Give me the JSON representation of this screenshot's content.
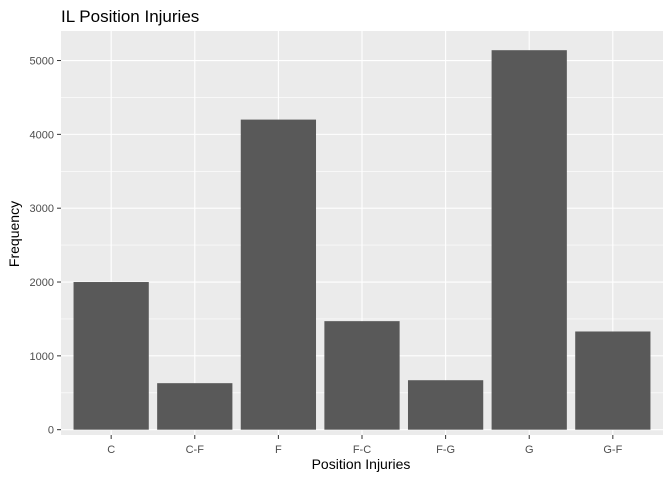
{
  "chart_data": {
    "type": "bar",
    "title": "IL Position Injuries",
    "xlabel": "Position Injuries",
    "ylabel": "Frequency",
    "categories": [
      "C",
      "C-F",
      "F",
      "F-C",
      "F-G",
      "G",
      "G-F"
    ],
    "values": [
      2000,
      630,
      4200,
      1470,
      670,
      5140,
      1330
    ],
    "ylim": [
      -72,
      5400
    ],
    "yticks": [
      0,
      1000,
      2000,
      3000,
      4000,
      5000
    ],
    "grid": true,
    "bar_color": "#595959",
    "panel_color": "#ebebeb",
    "grid_color": "#ffffff"
  }
}
